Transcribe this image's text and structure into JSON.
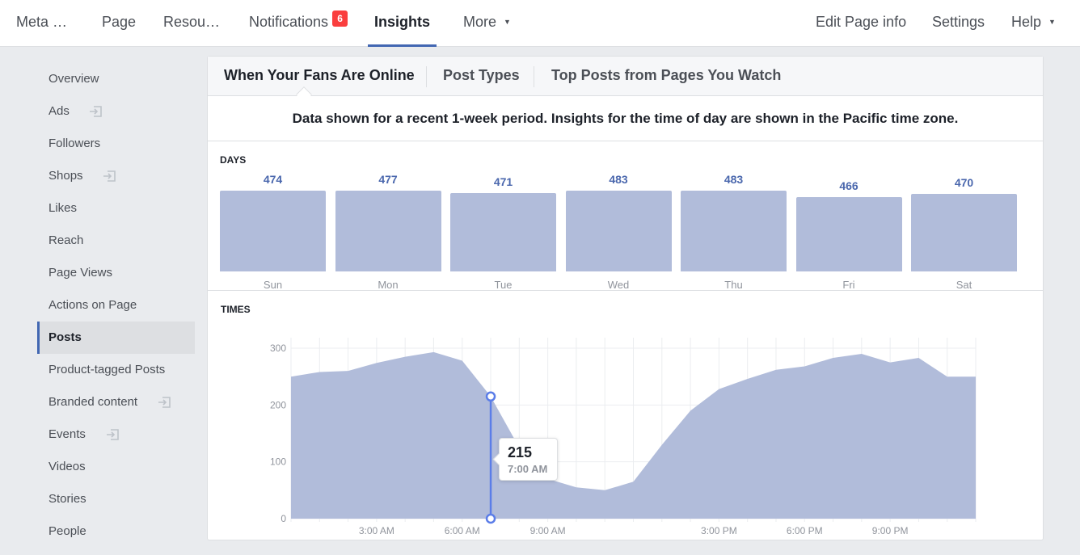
{
  "nav": {
    "left": [
      {
        "label": "Meta …"
      },
      {
        "label": "Page"
      },
      {
        "label": "Resou…"
      },
      {
        "label": "Notifications",
        "badge": "6"
      },
      {
        "label": "Insights",
        "active": true
      },
      {
        "label": "More"
      }
    ],
    "right": [
      {
        "label": "Edit Page info"
      },
      {
        "label": "Settings"
      },
      {
        "label": "Help"
      }
    ]
  },
  "sidebar": {
    "items": [
      {
        "label": "Overview"
      },
      {
        "label": "Ads",
        "external": true
      },
      {
        "label": "Followers"
      },
      {
        "label": "Shops",
        "external": true
      },
      {
        "label": "Likes"
      },
      {
        "label": "Reach"
      },
      {
        "label": "Page Views"
      },
      {
        "label": "Actions on Page"
      },
      {
        "label": "Posts",
        "active": true
      },
      {
        "label": "Product-tagged Posts"
      },
      {
        "label": "Branded content",
        "external": true
      },
      {
        "label": "Events",
        "external": true
      },
      {
        "label": "Videos"
      },
      {
        "label": "Stories"
      },
      {
        "label": "People"
      }
    ]
  },
  "tabs": [
    {
      "label": "When Your Fans Are Online",
      "active": true
    },
    {
      "label": "Post Types"
    },
    {
      "label": "Top Posts from Pages You Watch"
    }
  ],
  "info_text": "Data shown for a recent 1-week period. Insights for the time of day are shown in the Pacific time zone.",
  "colors": {
    "accent": "#4267b2",
    "bar": "#b1bcda",
    "value_text": "#4a67ad",
    "badge": "#fa3e3e",
    "marker": "#5b7de8"
  },
  "chart_data": [
    {
      "type": "bar",
      "title": "DAYS",
      "categories": [
        "Sun",
        "Mon",
        "Tue",
        "Wed",
        "Thu",
        "Fri",
        "Sat"
      ],
      "values": [
        474,
        477,
        471,
        483,
        483,
        466,
        470
      ]
    },
    {
      "type": "area",
      "title": "TIMES",
      "x": [
        "12:00 AM",
        "1:00 AM",
        "2:00 AM",
        "3:00 AM",
        "4:00 AM",
        "5:00 AM",
        "6:00 AM",
        "7:00 AM",
        "8:00 AM",
        "9:00 AM",
        "10:00 AM",
        "11:00 AM",
        "12:00 PM",
        "1:00 PM",
        "2:00 PM",
        "3:00 PM",
        "4:00 PM",
        "5:00 PM",
        "6:00 PM",
        "7:00 PM",
        "8:00 PM",
        "9:00 PM",
        "10:00 PM",
        "11:00 PM",
        "11:59 PM"
      ],
      "values": [
        250,
        258,
        260,
        274,
        285,
        293,
        278,
        215,
        125,
        70,
        55,
        50,
        65,
        130,
        190,
        228,
        246,
        262,
        268,
        283,
        290,
        275,
        283,
        250,
        250
      ],
      "ylim": [
        0,
        300
      ],
      "yticks": [
        0,
        100,
        200,
        300
      ],
      "xtick_labels": [
        "3:00 AM",
        "6:00 AM",
        "9:00 AM",
        "3:00 PM",
        "6:00 PM",
        "9:00 PM"
      ],
      "grid": true,
      "highlight": {
        "value": "215",
        "time": "7:00 AM"
      }
    }
  ]
}
